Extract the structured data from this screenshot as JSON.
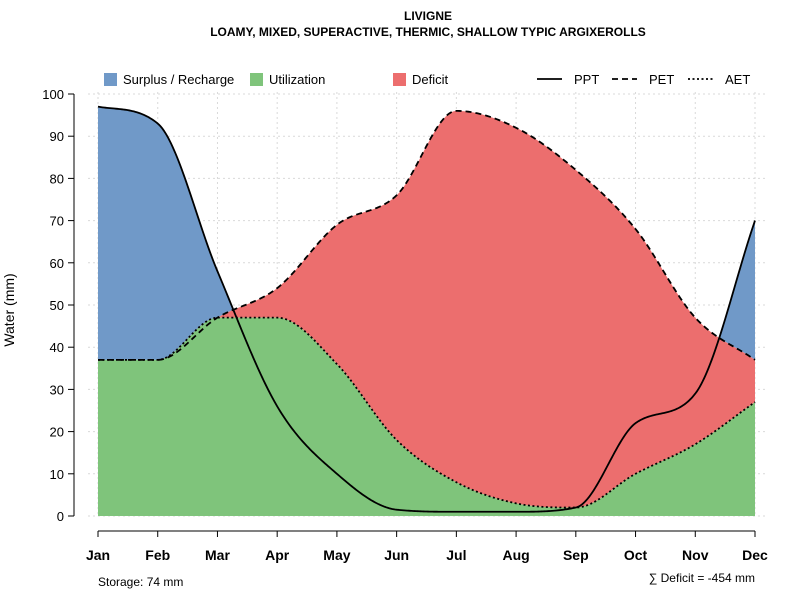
{
  "chart_data": {
    "type": "area",
    "title": "LIVIGNE",
    "subtitle": "LOAMY, MIXED, SUPERACTIVE, THERMIC, SHALLOW TYPIC ARGIXEROLLS",
    "ylabel": "Water (mm)",
    "xlabel": "",
    "ylim": [
      0,
      100
    ],
    "yticks": [
      0,
      10,
      20,
      30,
      40,
      50,
      60,
      70,
      80,
      90,
      100
    ],
    "grid": true,
    "categories": [
      "Jan",
      "Feb",
      "Mar",
      "Apr",
      "May",
      "Jun",
      "Jul",
      "Aug",
      "Sep",
      "Oct",
      "Nov",
      "Dec"
    ],
    "series": [
      {
        "name": "PPT",
        "style": "solid",
        "values": [
          97,
          93,
          58,
          26,
          10,
          1.5,
          1,
          1,
          2,
          22,
          29,
          70
        ]
      },
      {
        "name": "PET",
        "style": "dashed",
        "values": [
          37,
          37,
          47,
          54,
          69,
          76,
          96,
          92,
          82,
          68,
          47,
          37
        ]
      },
      {
        "name": "AET",
        "style": "dotted",
        "values": [
          37,
          37,
          47,
          47,
          36,
          18,
          8,
          3,
          2,
          10,
          17,
          27
        ]
      }
    ],
    "legend": [
      {
        "label": "Surplus / Recharge",
        "kind": "fill",
        "color": "#7099c8"
      },
      {
        "label": "Utilization",
        "kind": "fill",
        "color": "#7fc47b"
      },
      {
        "label": "Deficit",
        "kind": "fill",
        "color": "#ec6e6e"
      },
      {
        "label": "PPT",
        "kind": "line",
        "dash": "solid"
      },
      {
        "label": "PET",
        "kind": "line",
        "dash": "dashed"
      },
      {
        "label": "AET",
        "kind": "line",
        "dash": "dotted"
      }
    ],
    "legend_position": "top",
    "annotations": {
      "storage": "Storage: 74 mm",
      "deficit": "∑ Deficit = -454 mm"
    },
    "colors": {
      "surplus": "#7099c8",
      "utilization": "#7fc47b",
      "deficit": "#ec6e6e"
    }
  }
}
